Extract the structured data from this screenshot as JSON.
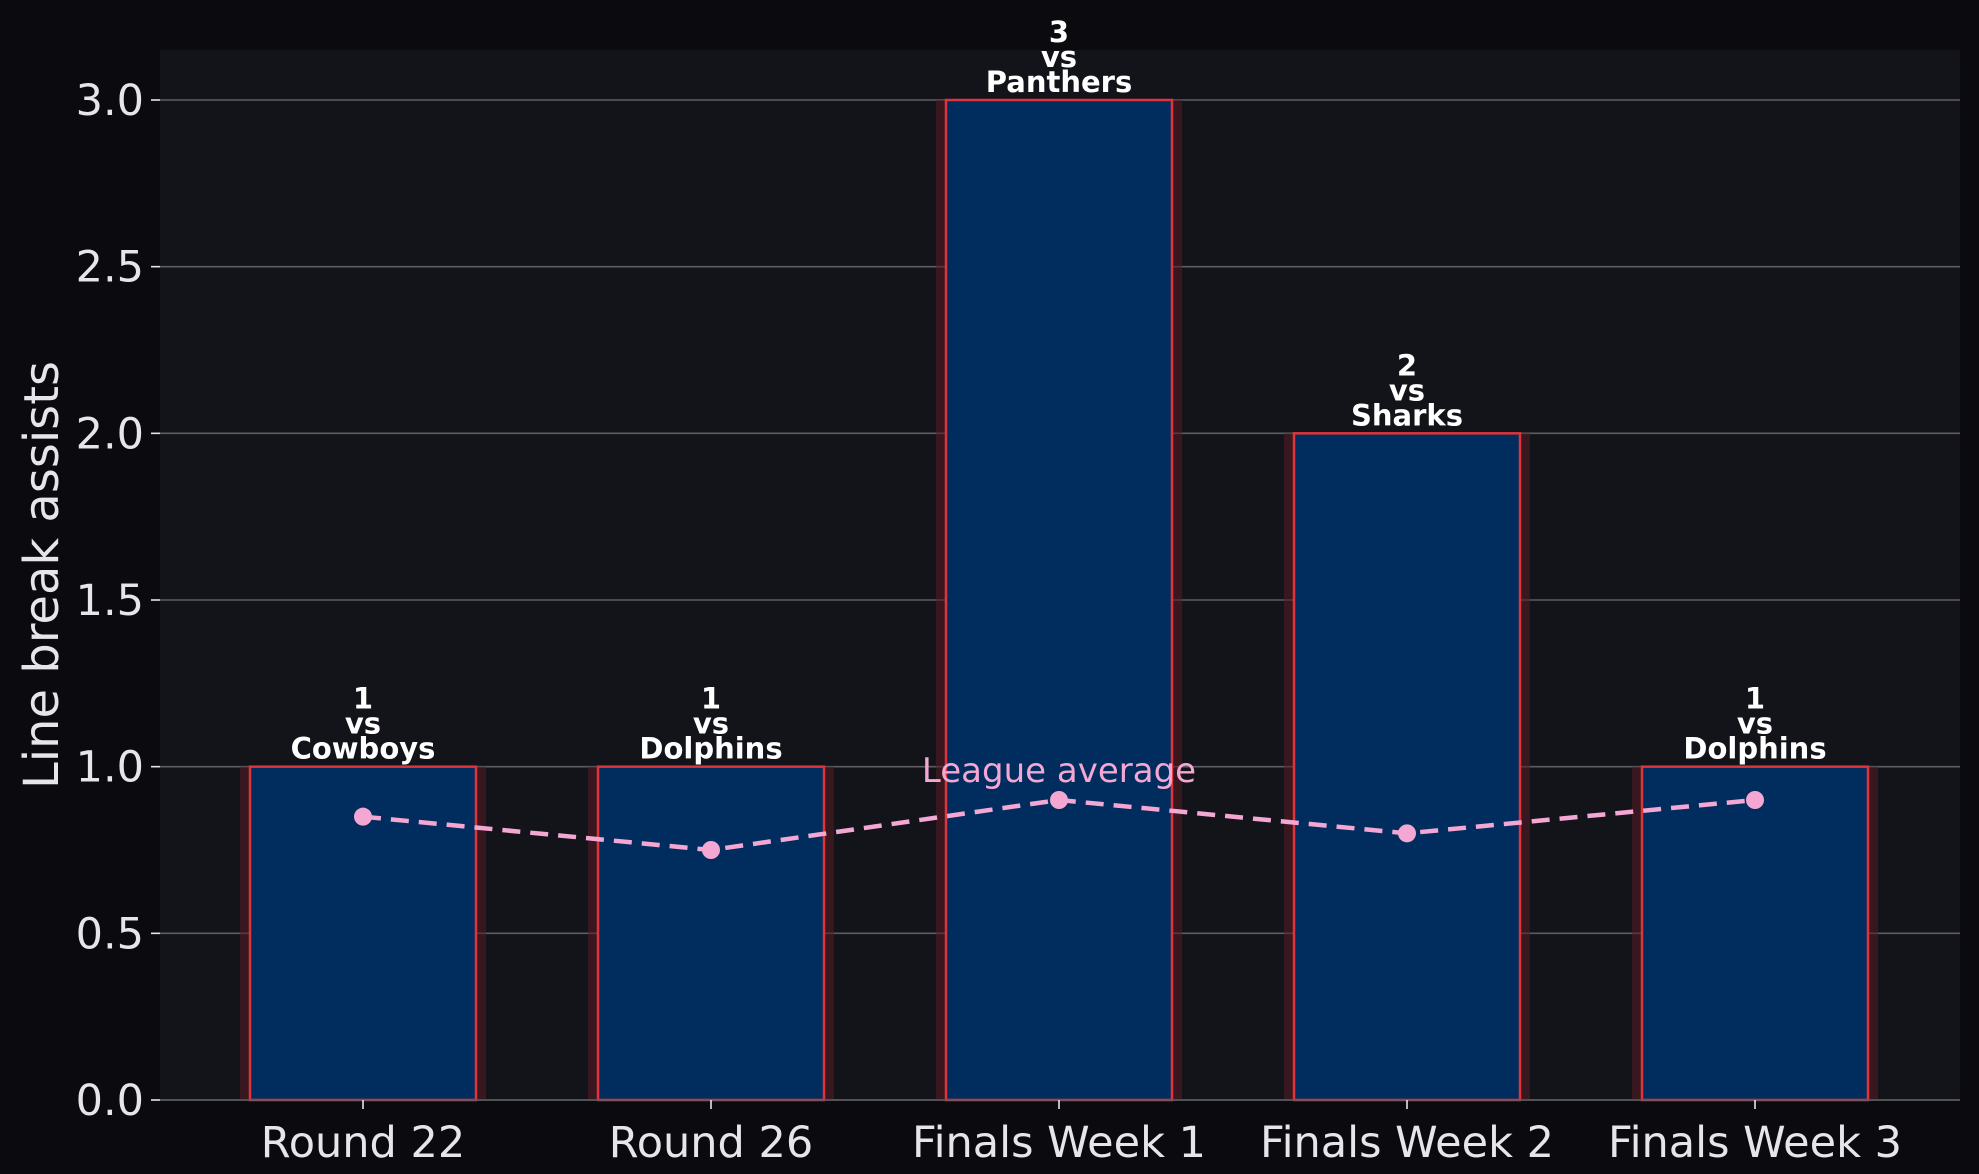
{
  "chart_data": {
    "type": "bar",
    "categories": [
      "Round 22",
      "Round 26",
      "Finals Week 1",
      "Finals Week 2",
      "Finals Week 3"
    ],
    "series": [
      {
        "values": [
          1,
          1,
          3,
          2,
          1
        ],
        "opponents": [
          "Cowboys",
          "Dolphins",
          "Panthers",
          "Sharks",
          "Dolphins"
        ]
      },
      {
        "name": "League average",
        "type": "line",
        "values": [
          0.85,
          0.75,
          0.9,
          0.8,
          0.9
        ]
      }
    ],
    "bar_label_connector": "vs",
    "title": "",
    "xlabel": "",
    "ylabel": "Line break assists",
    "ylim": [
      0,
      3.15
    ],
    "yticks": [
      "0.0",
      "0.5",
      "1.0",
      "1.5",
      "2.0",
      "2.5",
      "3.0"
    ],
    "grid": "horizontal",
    "colors": {
      "figure_bg": "#0b0b0f",
      "plot_bg": "#13131a",
      "bar_fill": "#002d5e",
      "bar_edge": "#e0333a",
      "bar_glow": "#5a1c24",
      "average_line": "#f4a7d3",
      "grid": "#5c5c63",
      "text": "#e6e6ea"
    }
  }
}
